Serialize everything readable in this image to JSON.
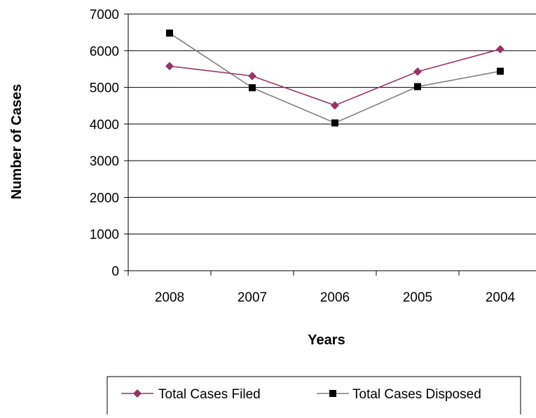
{
  "chart_data": {
    "type": "line",
    "title": "",
    "xlabel": "Years",
    "ylabel": "Number of Cases",
    "categories": [
      "2008",
      "2007",
      "2006",
      "2005",
      "2004"
    ],
    "ylim": [
      0,
      7000
    ],
    "yticks": [
      0,
      1000,
      2000,
      3000,
      4000,
      5000,
      6000,
      7000
    ],
    "grid": true,
    "legend_position": "bottom",
    "series": [
      {
        "name": "Total Cases Filed",
        "values": [
          5580,
          5310,
          4510,
          5430,
          6040
        ],
        "color": "#993366",
        "marker": "diamond"
      },
      {
        "name": "Total Cases Disposed",
        "values": [
          6480,
          4990,
          4030,
          5020,
          5440
        ],
        "color": "#808080",
        "marker_color": "#000000",
        "marker": "square"
      }
    ]
  }
}
